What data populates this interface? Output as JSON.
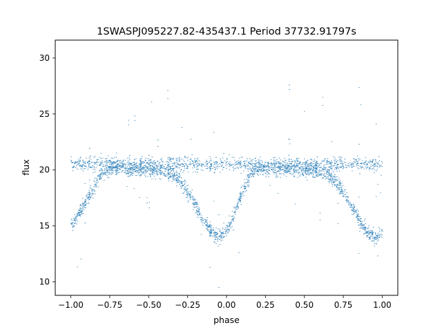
{
  "chart_data": {
    "type": "scatter",
    "title": "1SWASPJ095227.82-435437.1 Period 37732.91797s",
    "xlabel": "phase",
    "ylabel": "flux",
    "xlim": [
      -1.1,
      1.1
    ],
    "ylim": [
      8.8,
      31.6
    ],
    "x_ticks": [
      -1.0,
      -0.75,
      -0.5,
      -0.25,
      0.0,
      0.25,
      0.5,
      0.75,
      1.0
    ],
    "x_tick_labels": [
      "−1.00",
      "−0.75",
      "−0.50",
      "−0.25",
      "0.00",
      "0.25",
      "0.50",
      "0.75",
      "1.00"
    ],
    "y_ticks": [
      10,
      15,
      20,
      25,
      30
    ],
    "y_tick_labels": [
      "10",
      "15",
      "20",
      "25",
      "30"
    ],
    "grid": false,
    "legend": "none",
    "series": [
      {
        "color": "#1f77b4",
        "marker": "dot",
        "phase_range": [
          -1.0,
          1.0
        ],
        "note_shape": "phase-folded light curve, repeats with period 1.0 in phase",
        "x": [
          -1.0,
          -0.9,
          -0.8,
          -0.7,
          -0.6,
          -0.5,
          -0.4,
          -0.35,
          -0.3,
          -0.25,
          -0.2,
          -0.15,
          -0.1,
          -0.05,
          0.0,
          0.05,
          0.1,
          0.15,
          0.2,
          0.3,
          0.4,
          0.5,
          0.6,
          0.65,
          0.7,
          0.75,
          0.8,
          0.85,
          0.9,
          0.95,
          1.0
        ],
        "y": [
          15.0,
          17.3,
          19.8,
          20.2,
          20.1,
          20.0,
          19.9,
          19.6,
          19.0,
          18.0,
          16.8,
          15.5,
          14.5,
          14.0,
          14.5,
          16.2,
          18.0,
          19.6,
          20.2,
          20.2,
          20.1,
          20.0,
          19.9,
          19.6,
          19.0,
          18.0,
          16.8,
          15.5,
          14.5,
          14.0,
          14.5
        ]
      },
      {
        "color": "#1f77b4",
        "marker": "dot",
        "note_shape": "flat band of points near flux 20.5 across all phases",
        "x": [
          -1.0,
          -0.5,
          0.0,
          0.5,
          1.0
        ],
        "y": [
          20.6,
          20.5,
          20.5,
          20.5,
          20.6
        ]
      }
    ]
  }
}
